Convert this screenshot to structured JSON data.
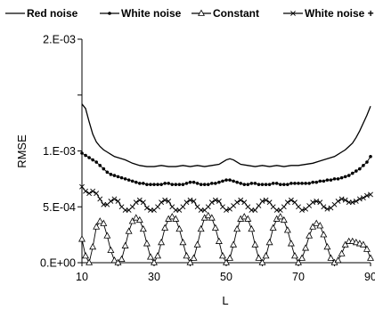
{
  "chart_data": {
    "type": "line",
    "title": "",
    "xlabel": "L",
    "ylabel": "RMSE",
    "xlim": [
      10,
      90
    ],
    "ylim": [
      0,
      0.002
    ],
    "x_ticks": [
      "10",
      "30",
      "50",
      "70",
      "90"
    ],
    "y_ticks": [
      "0.E+00",
      "5.E-04",
      "1.E-03",
      "2.E-03"
    ],
    "y_tick_values": [
      0,
      0.0005,
      0.001,
      0.0015
    ],
    "legend_position": "top",
    "grid": false,
    "series": [
      {
        "name": "Red noise",
        "marker": "none",
        "x": [
          10,
          11,
          12,
          13,
          14,
          15,
          16,
          17,
          18,
          19,
          20,
          22,
          24,
          26,
          28,
          30,
          32,
          34,
          36,
          38,
          40,
          42,
          44,
          46,
          48,
          49,
          50,
          51,
          52,
          53,
          54,
          56,
          58,
          60,
          62,
          64,
          66,
          68,
          70,
          72,
          74,
          76,
          78,
          80,
          81,
          82,
          83,
          84,
          85,
          86,
          87,
          88,
          89,
          90
        ],
        "y": [
          0.00142,
          0.00138,
          0.00126,
          0.00115,
          0.00108,
          0.00104,
          0.00101,
          0.00099,
          0.00097,
          0.00095,
          0.00094,
          0.00092,
          0.00089,
          0.00087,
          0.00086,
          0.00086,
          0.00087,
          0.00086,
          0.00086,
          0.00087,
          0.00086,
          0.00087,
          0.00086,
          0.00087,
          0.00088,
          0.0009,
          0.00092,
          0.00093,
          0.00092,
          0.0009,
          0.00088,
          0.00087,
          0.00086,
          0.00087,
          0.00086,
          0.00087,
          0.00086,
          0.00087,
          0.00087,
          0.00088,
          0.00089,
          0.00091,
          0.00093,
          0.00095,
          0.00097,
          0.00099,
          0.00101,
          0.00104,
          0.00107,
          0.00112,
          0.00118,
          0.00125,
          0.00132,
          0.0014
        ]
      },
      {
        "name": "White noise",
        "marker": "dot",
        "x": [
          10,
          11,
          12,
          13,
          14,
          15,
          16,
          17,
          18,
          19,
          20,
          21,
          22,
          23,
          24,
          25,
          26,
          27,
          28,
          29,
          30,
          31,
          32,
          33,
          34,
          35,
          36,
          37,
          38,
          39,
          40,
          41,
          42,
          43,
          44,
          45,
          46,
          47,
          48,
          49,
          50,
          51,
          52,
          53,
          54,
          55,
          56,
          57,
          58,
          59,
          60,
          61,
          62,
          63,
          64,
          65,
          66,
          67,
          68,
          69,
          70,
          71,
          72,
          73,
          74,
          75,
          76,
          77,
          78,
          79,
          80,
          81,
          82,
          83,
          84,
          85,
          86,
          87,
          88,
          89,
          90
        ],
        "y": [
          0.00098,
          0.00096,
          0.00094,
          0.00092,
          0.0009,
          0.00087,
          0.00084,
          0.00081,
          0.00079,
          0.00078,
          0.00077,
          0.00076,
          0.00075,
          0.00074,
          0.00073,
          0.00072,
          0.00071,
          0.00071,
          0.0007,
          0.0007,
          0.0007,
          0.0007,
          0.0007,
          0.00071,
          0.00071,
          0.0007,
          0.0007,
          0.0007,
          0.0007,
          0.00071,
          0.00072,
          0.00072,
          0.00071,
          0.0007,
          0.0007,
          0.0007,
          0.00071,
          0.00071,
          0.00072,
          0.00073,
          0.00074,
          0.00074,
          0.00073,
          0.00072,
          0.00071,
          0.0007,
          0.0007,
          0.00071,
          0.00071,
          0.0007,
          0.0007,
          0.0007,
          0.0007,
          0.00071,
          0.00071,
          0.0007,
          0.0007,
          0.0007,
          0.00071,
          0.00071,
          0.00071,
          0.00071,
          0.00071,
          0.00071,
          0.00072,
          0.00072,
          0.00073,
          0.00073,
          0.00074,
          0.00074,
          0.00075,
          0.00075,
          0.00076,
          0.00077,
          0.00078,
          0.0008,
          0.00082,
          0.00084,
          0.00087,
          0.0009,
          0.00095
        ]
      },
      {
        "name": "Constant",
        "marker": "triangle",
        "x": [
          10,
          11,
          12,
          13,
          14,
          15,
          16,
          17,
          18,
          19,
          20,
          21,
          22,
          23,
          24,
          25,
          26,
          27,
          28,
          29,
          30,
          31,
          32,
          33,
          34,
          35,
          36,
          37,
          38,
          39,
          40,
          41,
          42,
          43,
          44,
          45,
          46,
          47,
          48,
          49,
          50,
          51,
          52,
          53,
          54,
          55,
          56,
          57,
          58,
          59,
          60,
          61,
          62,
          63,
          64,
          65,
          66,
          67,
          68,
          69,
          70,
          71,
          72,
          73,
          74,
          75,
          76,
          77,
          78,
          79,
          80,
          81,
          82,
          83,
          84,
          85,
          86,
          87,
          88,
          89,
          90
        ],
        "y": [
          0.00021,
          6e-05,
          0,
          0.00014,
          0.00032,
          0.00037,
          0.00035,
          0.00024,
          0.00011,
          2e-05,
          0,
          3e-05,
          0.00015,
          0.00028,
          0.00037,
          0.0004,
          0.00038,
          0.0003,
          0.00017,
          5e-05,
          0,
          6e-05,
          0.00018,
          0.00031,
          0.00039,
          0.00041,
          0.00039,
          0.0003,
          0.00018,
          6e-05,
          0,
          4e-05,
          0.00016,
          0.0003,
          0.0004,
          0.00042,
          0.0004,
          0.00031,
          0.00019,
          6e-05,
          0,
          4e-05,
          0.00016,
          0.0003,
          0.00039,
          0.00041,
          0.00039,
          0.0003,
          0.00016,
          4e-05,
          0,
          6e-05,
          0.00018,
          0.00031,
          0.00039,
          0.00041,
          0.00038,
          0.00029,
          0.00017,
          6e-05,
          0,
          4e-05,
          0.00013,
          0.00024,
          0.00032,
          0.00035,
          0.00033,
          0.00025,
          0.00014,
          4e-05,
          0,
          2e-05,
          8e-05,
          0.00016,
          0.00019,
          0.00019,
          0.00018,
          0.00017,
          0.00016,
          0.00012,
          4e-05
        ]
      },
      {
        "name": "White noise + const",
        "marker": "x",
        "x": [
          10,
          11,
          12,
          13,
          14,
          15,
          16,
          17,
          18,
          19,
          20,
          21,
          22,
          23,
          24,
          25,
          26,
          27,
          28,
          29,
          30,
          31,
          32,
          33,
          34,
          35,
          36,
          37,
          38,
          39,
          40,
          41,
          42,
          43,
          44,
          45,
          46,
          47,
          48,
          49,
          50,
          51,
          52,
          53,
          54,
          55,
          56,
          57,
          58,
          59,
          60,
          61,
          62,
          63,
          64,
          65,
          66,
          67,
          68,
          69,
          70,
          71,
          72,
          73,
          74,
          75,
          76,
          77,
          78,
          79,
          80,
          81,
          82,
          83,
          84,
          85,
          86,
          87,
          88,
          89,
          90
        ],
        "y": [
          0.00068,
          0.00064,
          0.00062,
          0.00064,
          0.00062,
          0.00057,
          0.00052,
          0.00052,
          0.00055,
          0.00057,
          0.00055,
          0.0005,
          0.00047,
          0.00047,
          0.0005,
          0.00054,
          0.00056,
          0.00054,
          0.00049,
          0.00047,
          0.00047,
          0.0005,
          0.00054,
          0.00056,
          0.00055,
          0.0005,
          0.00047,
          0.00047,
          0.0005,
          0.00054,
          0.00056,
          0.00055,
          0.0005,
          0.00047,
          0.00047,
          0.0005,
          0.00054,
          0.00056,
          0.00055,
          0.0005,
          0.00047,
          0.00048,
          0.00051,
          0.00054,
          0.00056,
          0.00054,
          0.0005,
          0.00047,
          0.00047,
          0.00051,
          0.00055,
          0.00056,
          0.00054,
          0.0005,
          0.00047,
          0.00047,
          0.0005,
          0.00054,
          0.00056,
          0.00054,
          0.0005,
          0.00047,
          0.00048,
          0.00051,
          0.00054,
          0.00055,
          0.00054,
          0.0005,
          0.00048,
          0.00049,
          0.00052,
          0.00055,
          0.00057,
          0.00056,
          0.00054,
          0.00054,
          0.00055,
          0.00057,
          0.00058,
          0.0006,
          0.00061
        ]
      }
    ]
  }
}
